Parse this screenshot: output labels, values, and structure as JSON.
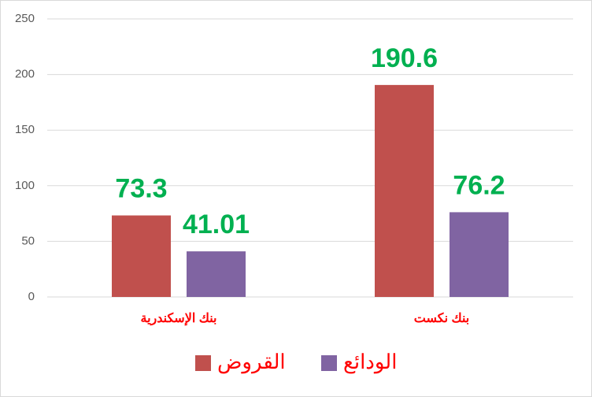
{
  "chart_data": {
    "type": "bar",
    "categories": [
      "بنك الإسكندرية",
      "بنك نكست"
    ],
    "series": [
      {
        "name": "القروض",
        "color": "#c0504d",
        "values": [
          73.3,
          190.6
        ]
      },
      {
        "name": "الودائع",
        "color": "#8064a2",
        "values": [
          41.01,
          76.2
        ]
      }
    ],
    "ylim": [
      0,
      250
    ],
    "yticks": [
      0,
      50,
      100,
      150,
      200,
      250
    ],
    "grid": true,
    "value_label_color": "#00b050",
    "category_label_color": "#ff0000"
  }
}
